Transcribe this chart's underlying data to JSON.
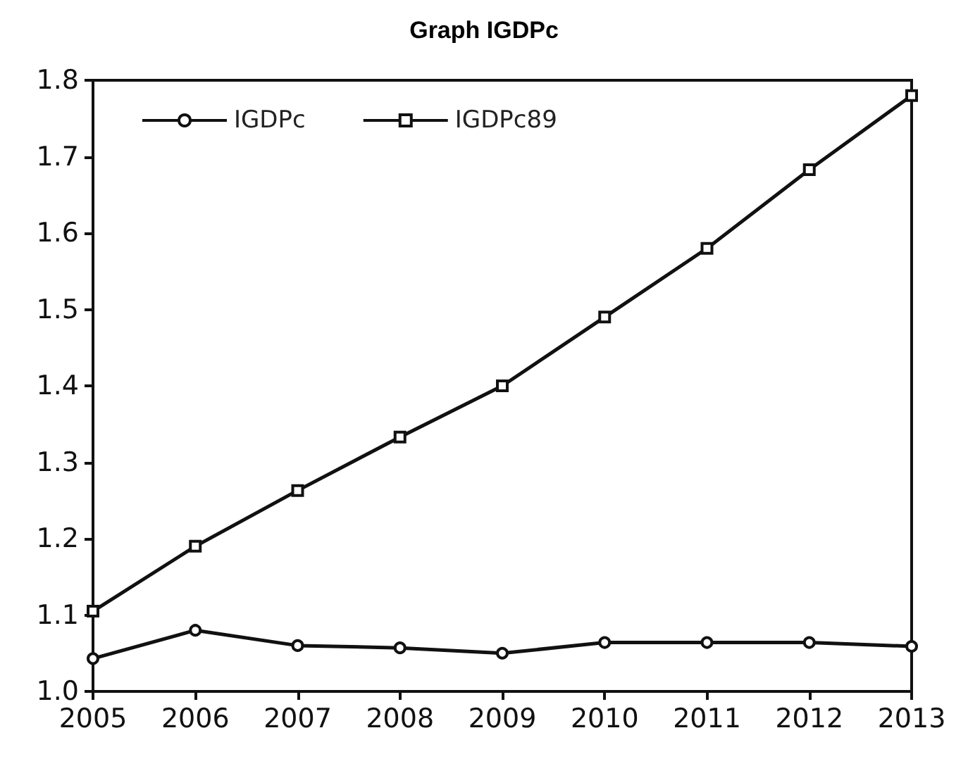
{
  "chart_data": {
    "type": "line",
    "title": "Graph IGDPc",
    "categories": [
      "2005",
      "2006",
      "2007",
      "2008",
      "2009",
      "2010",
      "2011",
      "2012",
      "2013"
    ],
    "series": [
      {
        "name": "IGDPc",
        "color": "#111111",
        "marker": "circle",
        "values": [
          1.043,
          1.08,
          1.06,
          1.057,
          1.05,
          1.064,
          1.064,
          1.064,
          1.059
        ]
      },
      {
        "name": "IGDPc89",
        "color": "#111111",
        "marker": "square",
        "values": [
          1.105,
          1.19,
          1.263,
          1.333,
          1.4,
          1.49,
          1.58,
          1.683,
          1.78
        ]
      }
    ],
    "ylim": [
      1.0,
      1.8
    ],
    "yticks": [
      {
        "value": 1,
        "label": "1.0"
      },
      1.1,
      1.2,
      1.3,
      1.4,
      1.5,
      1.6,
      1.7,
      1.8
    ],
    "grid": false,
    "legend": "top left",
    "line_style": "solid"
  }
}
